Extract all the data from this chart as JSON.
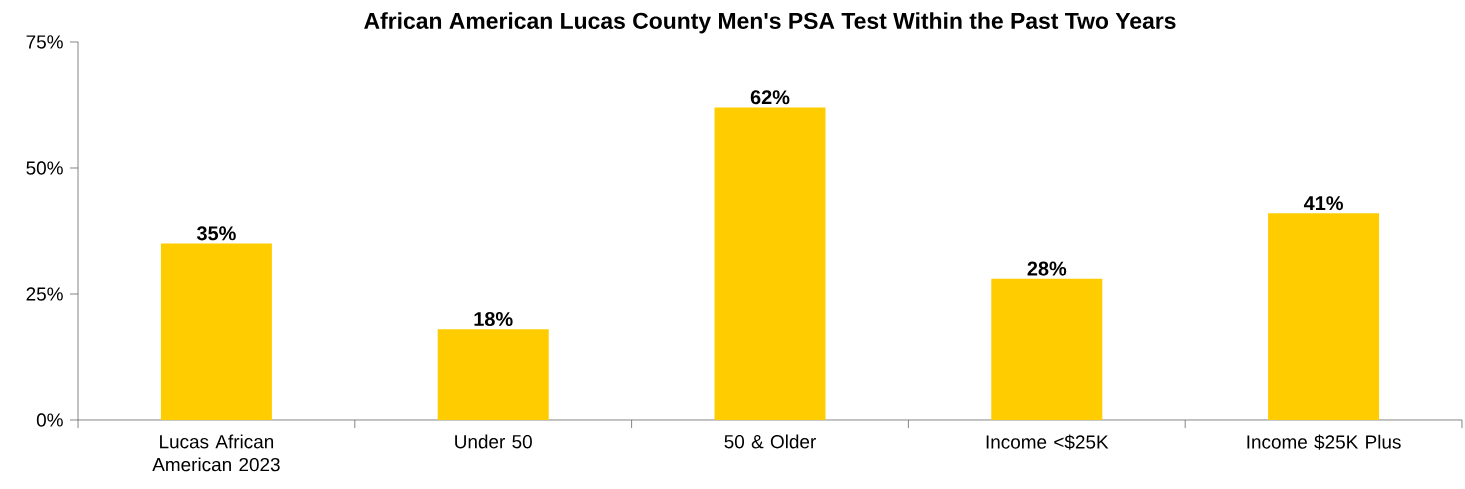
{
  "chart_data": {
    "type": "bar",
    "title": "African American Lucas County Men's PSA Test Within the Past Two Years",
    "categories": [
      "Lucas African American 2023",
      "Under 50",
      "50 & Older",
      "Income <$25K",
      "Income $25K Plus"
    ],
    "values": [
      35,
      18,
      62,
      28,
      41
    ],
    "value_labels": [
      "35%",
      "18%",
      "62%",
      "28%",
      "41%"
    ],
    "color": "#ffcc00",
    "ylim": [
      0,
      75
    ],
    "yticks": [
      {
        "value": 0,
        "label": "0%"
      },
      {
        "value": 25,
        "label": "25%"
      },
      {
        "value": 50,
        "label": "50%"
      },
      {
        "value": 75,
        "label": "75%"
      }
    ],
    "grid": false
  }
}
